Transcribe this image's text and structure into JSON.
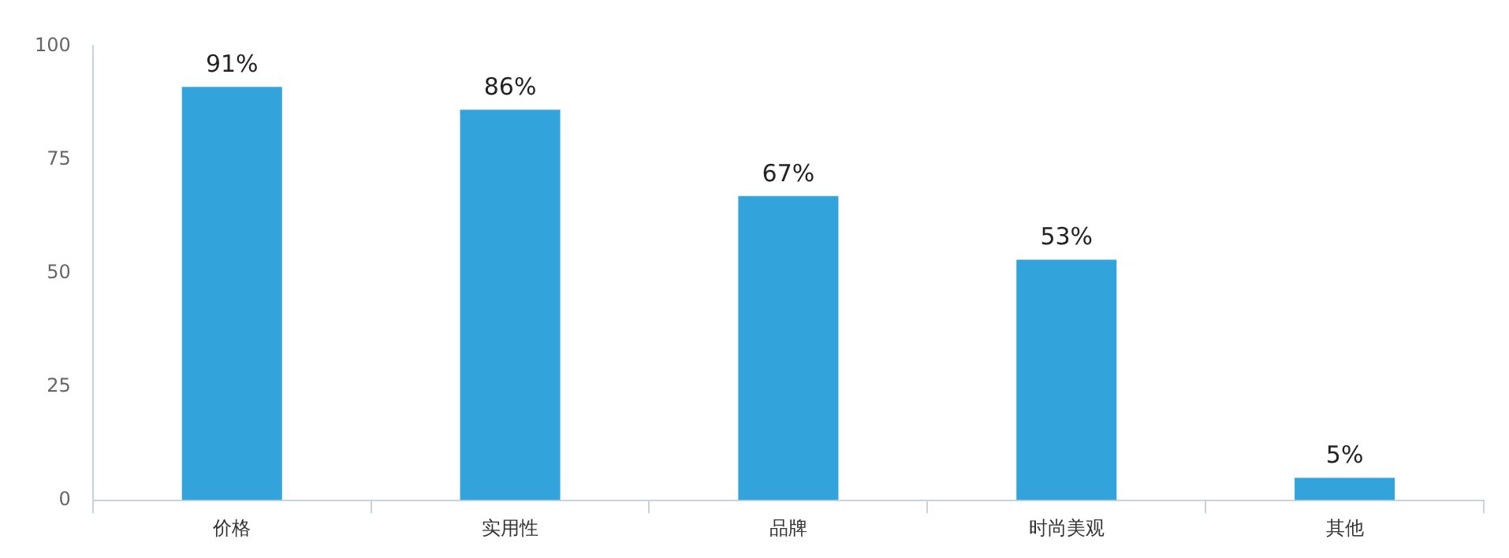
{
  "chart_data": {
    "type": "bar",
    "categories": [
      "价格",
      "实用性",
      "品牌",
      "时尚美观",
      "其他"
    ],
    "values": [
      91,
      86,
      67,
      53,
      5
    ],
    "value_labels": [
      "91%",
      "86%",
      "67%",
      "53%",
      "5%"
    ],
    "color": "#33a3dc",
    "ylim": [
      0,
      100
    ],
    "yticks": [
      0,
      25,
      50,
      75,
      100
    ],
    "grid": false,
    "legend": false
  }
}
